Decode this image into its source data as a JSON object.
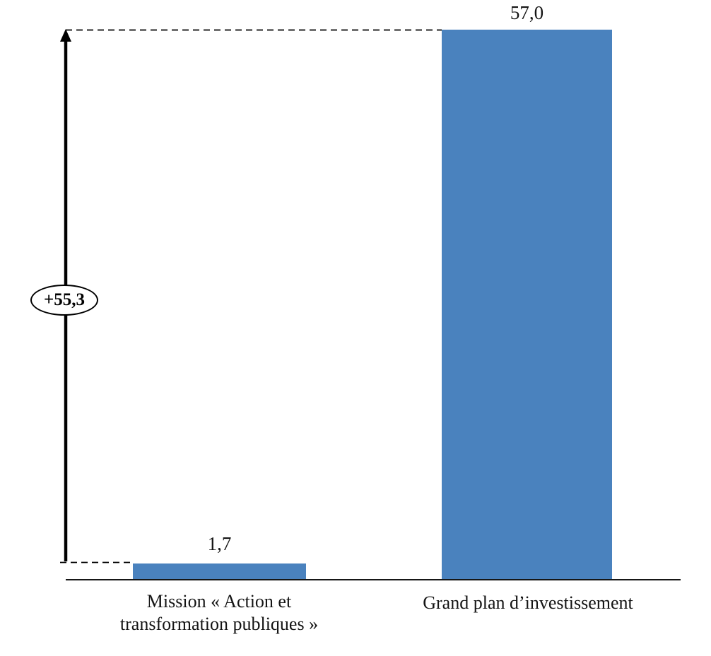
{
  "chart_data": {
    "type": "bar",
    "categories": [
      "Mission « Action et transformation publiques »",
      "Grand plan d’investissement"
    ],
    "values": [
      1.7,
      57.0
    ],
    "value_labels": [
      "1,7",
      "57,0"
    ],
    "annotation": "+55,3",
    "title": "",
    "xlabel": "",
    "ylabel": "",
    "ylim": [
      0,
      57
    ],
    "grid": false,
    "legend": false,
    "bar_color": "#4a82be",
    "axis_color": "#161616"
  },
  "display": {
    "value_label_left": "1,7",
    "value_label_right": "57,0",
    "annotation_label": "+55,3",
    "category_left_line1": "Mission « Action et",
    "category_left_line2": "transformation publiques »",
    "category_right": "Grand plan d’investissement"
  }
}
